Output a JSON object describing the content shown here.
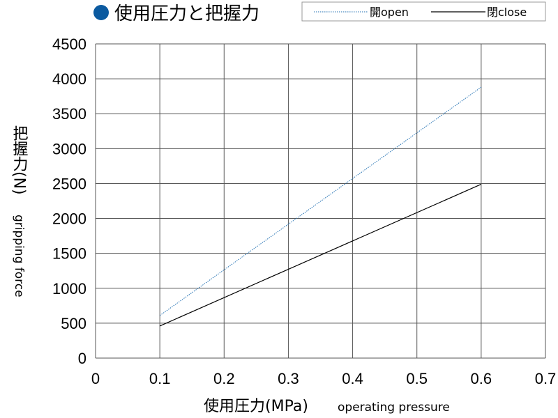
{
  "chart_data": {
    "type": "line",
    "title": "使用圧力と把握力",
    "title_bullet_color": "#0b5aa0",
    "xlabel": "使用圧力(MPa)",
    "xlabel_en": "operating pressure",
    "ylabel": "把握力(N)",
    "ylabel_en": "gripping force",
    "xlim": [
      0,
      0.7
    ],
    "ylim": [
      0,
      4500
    ],
    "x_ticks": [
      "0",
      "0.1",
      "0.2",
      "0.3",
      "0.4",
      "0.5",
      "0.6",
      "0.7"
    ],
    "y_ticks": [
      "0",
      "500",
      "1000",
      "1500",
      "2000",
      "2500",
      "3000",
      "3500",
      "4000",
      "4500"
    ],
    "grid": true,
    "legend_position": "top-right",
    "series": [
      {
        "name": "開open",
        "color": "#1f6fb2",
        "style": "dotted",
        "x": [
          0.1,
          0.6
        ],
        "y": [
          610,
          3880
        ]
      },
      {
        "name": "閉close",
        "color": "#000000",
        "style": "solid",
        "x": [
          0.1,
          0.6
        ],
        "y": [
          460,
          2490
        ]
      }
    ]
  }
}
